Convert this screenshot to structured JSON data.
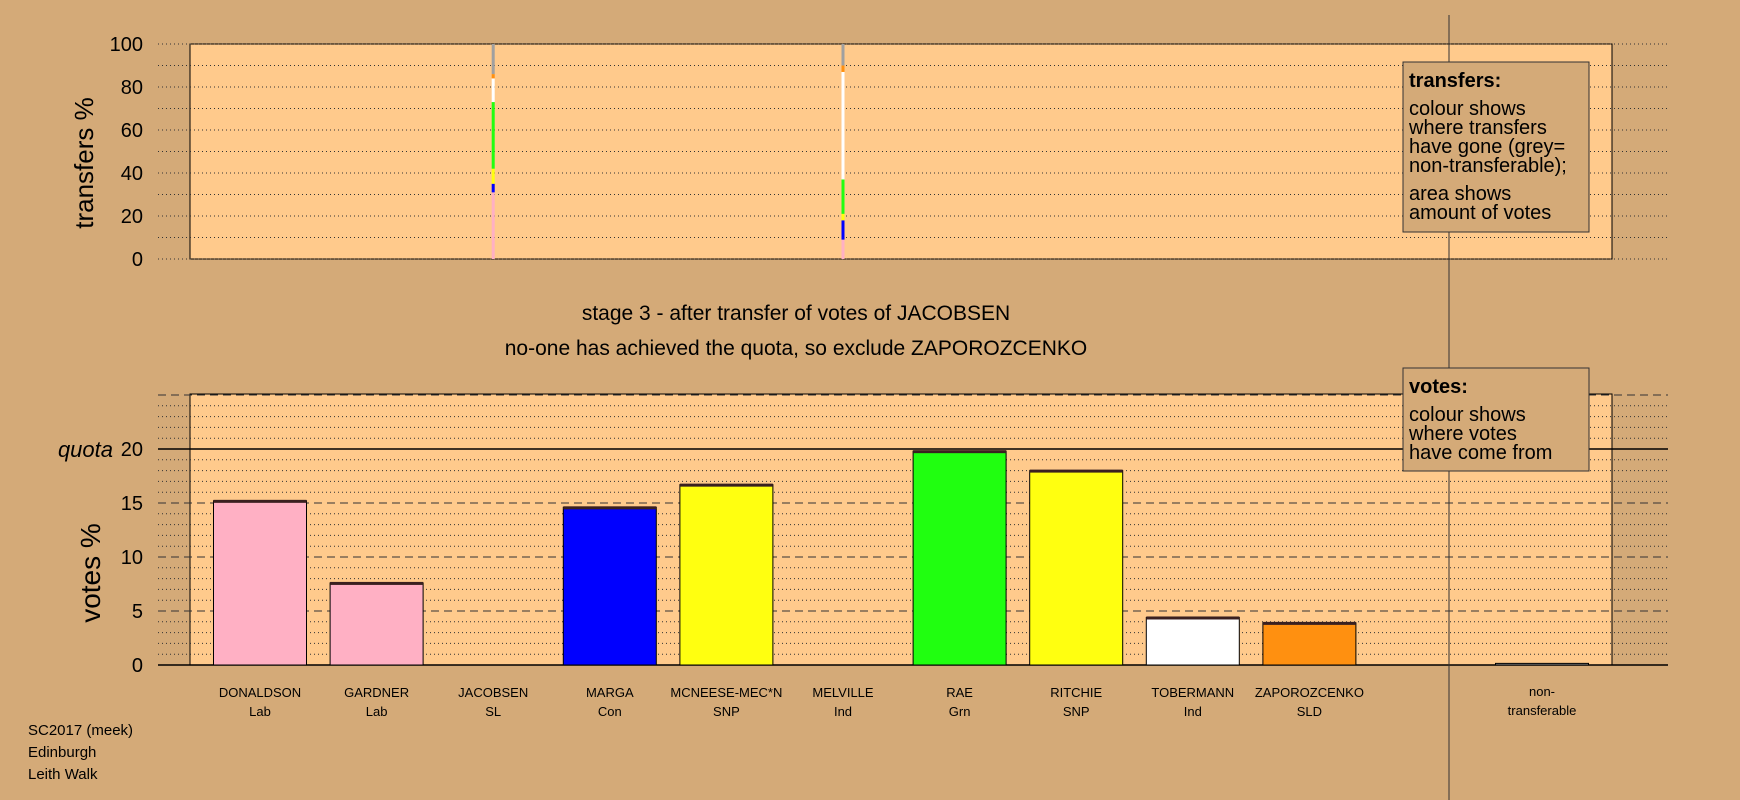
{
  "colors": {
    "background": "#d4aa78",
    "panel": "#ffca8c",
    "pink": "#ffb0c4",
    "blue": "#0000ff",
    "yellow": "#ffff10",
    "green": "#20ff10",
    "white": "#ffffff",
    "orange": "#ff9010",
    "grey": "#a0a0a0"
  },
  "footer": {
    "line1": "SC2017 (meek)",
    "line2": "Edinburgh",
    "line3": "Leith Walk"
  },
  "chart_data": [
    {
      "type": "bar",
      "id": "transfers",
      "ylabel": "transfers %",
      "ylim": [
        0,
        100
      ],
      "yticks": [
        0,
        20,
        40,
        60,
        80,
        100
      ],
      "grid": "dotted every 10",
      "candidates_with_transfers": [
        "JACOBSEN",
        "MELVILLE"
      ],
      "series": [
        {
          "category": "JACOBSEN",
          "segments": [
            {
              "color": "pink",
              "from": 0,
              "to": 31
            },
            {
              "color": "blue",
              "from": 31,
              "to": 35
            },
            {
              "color": "yellow",
              "from": 35,
              "to": 42
            },
            {
              "color": "green",
              "from": 42,
              "to": 73
            },
            {
              "color": "white",
              "from": 73,
              "to": 84
            },
            {
              "color": "orange",
              "from": 84,
              "to": 86
            },
            {
              "color": "grey",
              "from": 86,
              "to": 100
            }
          ]
        },
        {
          "category": "MELVILLE",
          "segments": [
            {
              "color": "pink",
              "from": 0,
              "to": 9
            },
            {
              "color": "blue",
              "from": 9,
              "to": 18
            },
            {
              "color": "yellow",
              "from": 18,
              "to": 21
            },
            {
              "color": "green",
              "from": 21,
              "to": 37
            },
            {
              "color": "white",
              "from": 37,
              "to": 87
            },
            {
              "color": "orange",
              "from": 87,
              "to": 90
            },
            {
              "color": "grey",
              "from": 90,
              "to": 100
            }
          ]
        }
      ],
      "legend": {
        "title": "transfers:",
        "lines1": [
          "colour shows",
          "where transfers",
          "have gone (grey=",
          "non-transferable);"
        ],
        "lines2": [
          "area shows",
          "amount of votes"
        ]
      }
    },
    {
      "type": "bar",
      "id": "votes",
      "ylabel": "votes %",
      "quota_label": "quota",
      "quota": 20,
      "ylim": [
        0,
        25
      ],
      "yticks": [
        0,
        5,
        10,
        15,
        20
      ],
      "grid": "dashed every 5, dotted every 1",
      "categories": [
        {
          "name": "DONALDSON",
          "party": "Lab",
          "value": 15.2,
          "color": "pink"
        },
        {
          "name": "GARDNER",
          "party": "Lab",
          "value": 7.6,
          "color": "pink"
        },
        {
          "name": "JACOBSEN",
          "party": "SL",
          "value": 0,
          "color": "pink"
        },
        {
          "name": "MARGA",
          "party": "Con",
          "value": 14.6,
          "color": "blue"
        },
        {
          "name": "MCNEESE-MEC*N",
          "party": "SNP",
          "value": 16.7,
          "color": "yellow"
        },
        {
          "name": "MELVILLE",
          "party": "Ind",
          "value": 0,
          "color": "pink"
        },
        {
          "name": "RAE",
          "party": "Grn",
          "value": 19.8,
          "color": "green"
        },
        {
          "name": "RITCHIE",
          "party": "SNP",
          "value": 18.0,
          "color": "yellow"
        },
        {
          "name": "TOBERMANN",
          "party": "Ind",
          "value": 4.4,
          "color": "white"
        },
        {
          "name": "ZAPOROZCENKO",
          "party": "SLD",
          "value": 3.9,
          "color": "orange"
        }
      ],
      "nontransferable": {
        "line1": "non-",
        "line2": "transferable",
        "value": 0.15
      },
      "legend": {
        "title": "votes:",
        "lines": [
          "colour shows",
          "where votes",
          "have come from"
        ]
      }
    }
  ],
  "stage": {
    "line1": "stage 3 - after transfer of votes of JACOBSEN",
    "line2": "no-one has achieved the quota, so exclude ZAPOROZCENKO"
  }
}
